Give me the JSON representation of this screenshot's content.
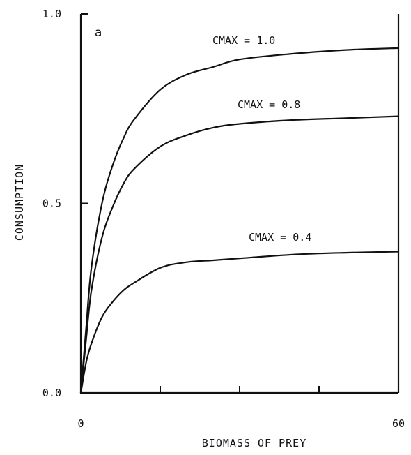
{
  "chart_data": {
    "type": "line",
    "panel_label": "a",
    "title": "",
    "xlabel": "BIOMASS OF PREY",
    "ylabel": "CONSUMPTION",
    "xlim": [
      0,
      60
    ],
    "ylim": [
      0,
      1.0
    ],
    "x_ticks": [
      0,
      15,
      30,
      45,
      60
    ],
    "x_tick_labels": [
      "0",
      "",
      "",
      "",
      "60"
    ],
    "y_ticks": [
      0.0,
      0.5,
      1.0
    ],
    "y_tick_labels": [
      "0.0",
      "0.5",
      "1.0"
    ],
    "grid": false,
    "legend": "none",
    "series": [
      {
        "name": "CMAX = 1.0",
        "x": [
          0,
          1,
          2,
          4,
          6,
          8,
          10,
          15,
          20,
          25,
          30,
          40,
          50,
          60
        ],
        "y": [
          0.0,
          0.17,
          0.33,
          0.5,
          0.6,
          0.67,
          0.72,
          0.8,
          0.84,
          0.86,
          0.88,
          0.895,
          0.905,
          0.91
        ]
      },
      {
        "name": "CMAX = 0.8",
        "x": [
          0,
          1,
          2,
          4,
          6,
          8,
          10,
          15,
          20,
          25,
          30,
          40,
          50,
          60
        ],
        "y": [
          0.0,
          0.14,
          0.27,
          0.41,
          0.49,
          0.55,
          0.59,
          0.65,
          0.68,
          0.7,
          0.71,
          0.72,
          0.725,
          0.73
        ]
      },
      {
        "name": "CMAX = 0.4",
        "x": [
          0,
          1,
          2,
          4,
          6,
          8,
          10,
          15,
          20,
          25,
          30,
          40,
          50,
          60
        ],
        "y": [
          0.0,
          0.08,
          0.13,
          0.2,
          0.24,
          0.27,
          0.29,
          0.33,
          0.345,
          0.35,
          0.355,
          0.365,
          0.37,
          0.373
        ]
      }
    ]
  }
}
